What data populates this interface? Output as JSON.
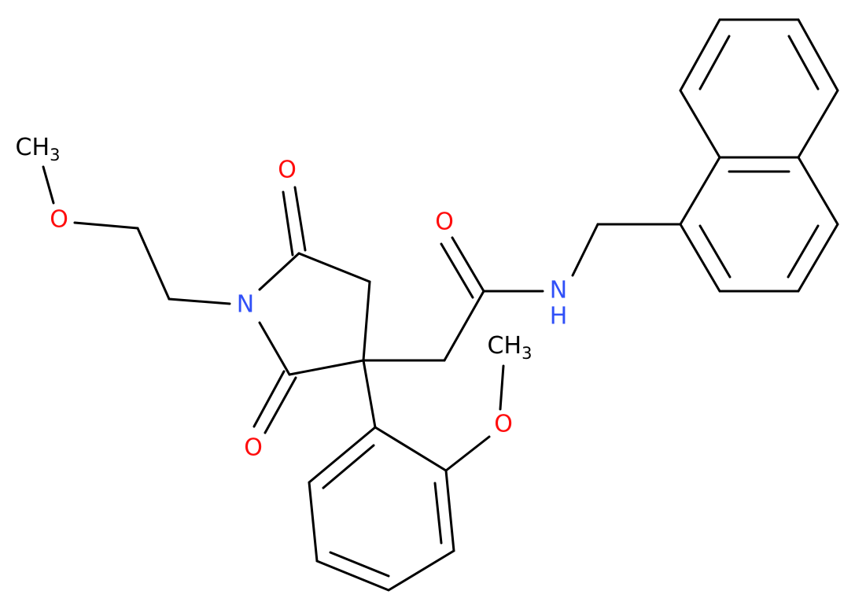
{
  "atoms": [
    {
      "label": "CH",
      "subscript": "3"
    },
    {
      "label": "O"
    },
    {
      "label": "N"
    },
    {
      "label": "O"
    },
    {
      "label": "O"
    },
    {
      "label": "O"
    },
    {
      "label": "N"
    },
    {
      "label": "H"
    },
    {
      "label": "CH",
      "subscript": "3"
    },
    {
      "label": "O"
    }
  ]
}
